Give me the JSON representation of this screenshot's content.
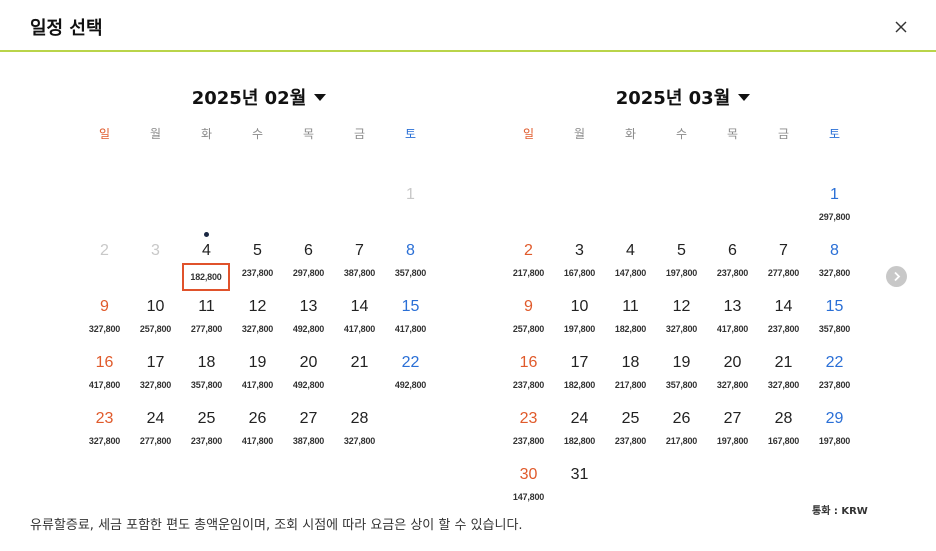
{
  "header": {
    "title": "일정 선택",
    "close_icon": "close-icon"
  },
  "weekdays": [
    "일",
    "월",
    "화",
    "수",
    "목",
    "금",
    "토"
  ],
  "months": [
    {
      "title": "2025년 02월",
      "offset": 6,
      "days": [
        {
          "d": "1",
          "price": "",
          "disabled": true
        },
        {
          "d": "2",
          "price": "",
          "disabled": true
        },
        {
          "d": "3",
          "price": "",
          "disabled": true
        },
        {
          "d": "4",
          "price": "182,800",
          "today": true,
          "selected": true
        },
        {
          "d": "5",
          "price": "237,800"
        },
        {
          "d": "6",
          "price": "297,800"
        },
        {
          "d": "7",
          "price": "387,800"
        },
        {
          "d": "8",
          "price": "357,800"
        },
        {
          "d": "9",
          "price": "327,800"
        },
        {
          "d": "10",
          "price": "257,800"
        },
        {
          "d": "11",
          "price": "277,800"
        },
        {
          "d": "12",
          "price": "327,800"
        },
        {
          "d": "13",
          "price": "492,800"
        },
        {
          "d": "14",
          "price": "417,800"
        },
        {
          "d": "15",
          "price": "417,800"
        },
        {
          "d": "16",
          "price": "417,800"
        },
        {
          "d": "17",
          "price": "327,800"
        },
        {
          "d": "18",
          "price": "357,800"
        },
        {
          "d": "19",
          "price": "417,800"
        },
        {
          "d": "20",
          "price": "492,800"
        },
        {
          "d": "21",
          "price": ""
        },
        {
          "d": "22",
          "price": "492,800"
        },
        {
          "d": "23",
          "price": "327,800"
        },
        {
          "d": "24",
          "price": "277,800"
        },
        {
          "d": "25",
          "price": "237,800"
        },
        {
          "d": "26",
          "price": "417,800"
        },
        {
          "d": "27",
          "price": "387,800"
        },
        {
          "d": "28",
          "price": "327,800"
        }
      ]
    },
    {
      "title": "2025년 03월",
      "offset": 6,
      "days": [
        {
          "d": "1",
          "price": "297,800"
        },
        {
          "d": "2",
          "price": "217,800"
        },
        {
          "d": "3",
          "price": "167,800"
        },
        {
          "d": "4",
          "price": "147,800"
        },
        {
          "d": "5",
          "price": "197,800"
        },
        {
          "d": "6",
          "price": "237,800"
        },
        {
          "d": "7",
          "price": "277,800"
        },
        {
          "d": "8",
          "price": "327,800"
        },
        {
          "d": "9",
          "price": "257,800"
        },
        {
          "d": "10",
          "price": "197,800"
        },
        {
          "d": "11",
          "price": "182,800"
        },
        {
          "d": "12",
          "price": "327,800"
        },
        {
          "d": "13",
          "price": "417,800"
        },
        {
          "d": "14",
          "price": "237,800"
        },
        {
          "d": "15",
          "price": "357,800"
        },
        {
          "d": "16",
          "price": "237,800"
        },
        {
          "d": "17",
          "price": "182,800"
        },
        {
          "d": "18",
          "price": "217,800"
        },
        {
          "d": "19",
          "price": "357,800"
        },
        {
          "d": "20",
          "price": "327,800"
        },
        {
          "d": "21",
          "price": "327,800"
        },
        {
          "d": "22",
          "price": "237,800"
        },
        {
          "d": "23",
          "price": "237,800"
        },
        {
          "d": "24",
          "price": "182,800"
        },
        {
          "d": "25",
          "price": "237,800"
        },
        {
          "d": "26",
          "price": "217,800"
        },
        {
          "d": "27",
          "price": "197,800"
        },
        {
          "d": "28",
          "price": "167,800"
        },
        {
          "d": "29",
          "price": "197,800"
        },
        {
          "d": "30",
          "price": "147,800"
        },
        {
          "d": "31",
          "price": ""
        }
      ]
    }
  ],
  "footer": {
    "currency": "통화 : KRW",
    "note": "유류할증료, 세금 포함한 편도 총액운임이며, 조회 시점에 따라 요금은 상이 할 수 있습니다."
  },
  "icons": {
    "next": "chevron-right-icon"
  },
  "colors": {
    "accent_line": "#b9d44a",
    "sunday": "#e05a2b",
    "saturday": "#2a6fd6",
    "selected_border": "#e0522b"
  }
}
